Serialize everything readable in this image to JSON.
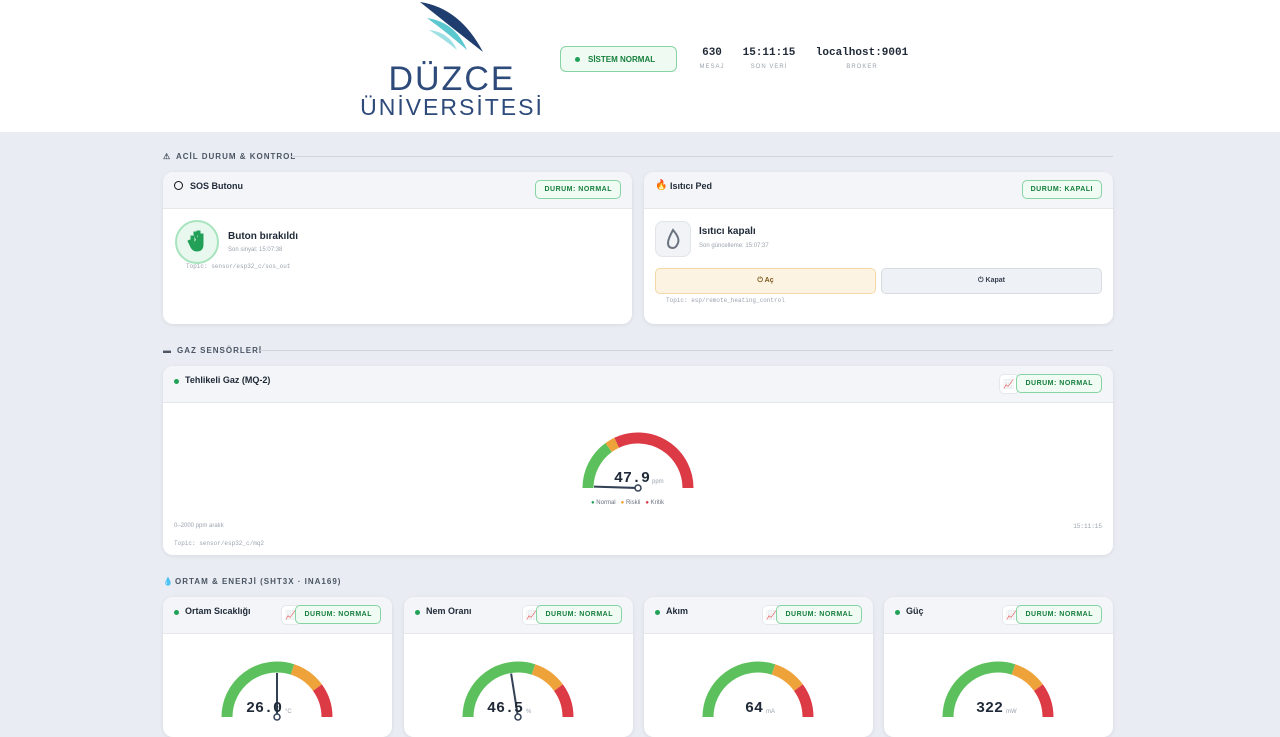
{
  "header": {
    "logo_title": "DÜZCE",
    "logo_subtitle": "ÜNİVERSİTESİ",
    "status": "SİSTEM NORMAL",
    "stats": [
      {
        "value": "630",
        "label": "MESAJ"
      },
      {
        "value": "15:11:15",
        "label": "SON VERİ"
      },
      {
        "value": "localhost:9001",
        "label": "BROKER"
      }
    ]
  },
  "emergency": {
    "section_title": "ACİL DURUM & KONTROL",
    "sos": {
      "title": "SOS Butonu",
      "badge": "DURUM: NORMAL",
      "state": "Buton bırakıldı",
      "last": "Son sinyal: 15:07:38",
      "topic": "Topic: sensor/esp32_c/sos_out"
    },
    "heater": {
      "title": "Isıtıcı Ped",
      "badge": "DURUM: KAPALI",
      "state": "Isıtıcı kapalı",
      "last": "Son güncelleme: 15:07:37",
      "on": "Aç",
      "off": "Kapat",
      "topic": "Topic: esp/remote_heating_control"
    }
  },
  "gas": {
    "section_title": "GAZ SENSÖRLERİ",
    "title": "Tehlikeli Gaz (MQ-2)",
    "badge": "DURUM: NORMAL",
    "value": "47.9",
    "unit": "ppm",
    "legend": [
      "Normal",
      "Riskli",
      "Kritik"
    ],
    "range": "0–2000 ppm aralık",
    "time": "15:11:15",
    "topic": "Topic: sensor/esp32_c/mq2"
  },
  "environment": {
    "section_title": "ORTAM & ENERJİ (SHT3X · INA169)",
    "cards": [
      {
        "title": "Ortam Sıcaklığı",
        "badge": "DURUM: NORMAL",
        "value": "26.0",
        "unit": "°C"
      },
      {
        "title": "Nem Oranı",
        "badge": "DURUM: NORMAL",
        "value": "46.5",
        "unit": "%"
      },
      {
        "title": "Akım",
        "badge": "DURUM: NORMAL",
        "value": "64",
        "unit": "mA"
      },
      {
        "title": "Güç",
        "badge": "DURUM: NORMAL",
        "value": "322",
        "unit": "mW"
      }
    ]
  }
}
